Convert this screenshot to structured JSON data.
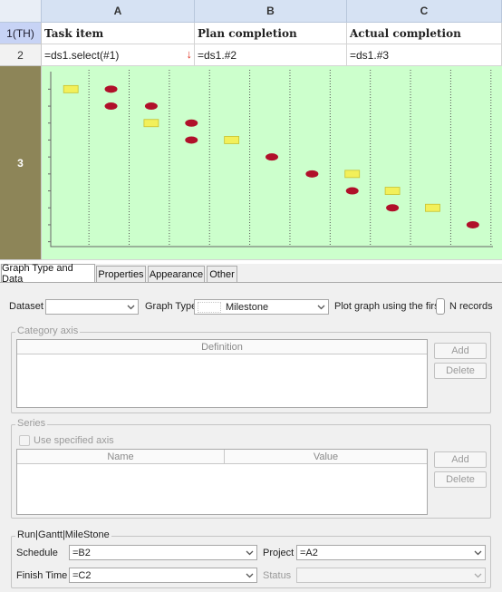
{
  "sheet": {
    "columns": [
      "A",
      "B",
      "C"
    ],
    "rows": [
      {
        "header": "1(TH)",
        "cells": [
          "Task item",
          "Plan completion",
          "Actual completion"
        ]
      },
      {
        "header": "2",
        "cells": [
          "=ds1.select(#1)",
          "=ds1.#2",
          "=ds1.#3"
        ]
      },
      {
        "header": "3"
      }
    ]
  },
  "chart_data": {
    "type": "scatter",
    "title": "",
    "xlabel": "",
    "ylabel": "",
    "grid": true,
    "background": "#ccffcc",
    "series": [
      {
        "marker": "rectangle",
        "color": "#f2f05a",
        "points": [
          [
            0,
            1
          ],
          [
            2,
            3
          ],
          [
            4,
            4
          ],
          [
            7,
            6
          ],
          [
            8,
            7
          ],
          [
            9,
            8
          ]
        ]
      },
      {
        "marker": "ellipse",
        "color": "#b0102a",
        "points": [
          [
            1,
            1
          ],
          [
            1,
            2
          ],
          [
            2,
            2
          ],
          [
            3,
            3
          ],
          [
            3,
            4
          ],
          [
            5,
            5
          ],
          [
            6,
            6
          ],
          [
            7,
            7
          ],
          [
            8,
            8
          ],
          [
            10,
            9
          ]
        ]
      }
    ]
  },
  "tabs": [
    {
      "label": "Graph Type and Data",
      "active": true
    },
    {
      "label": "Properties"
    },
    {
      "label": "Appearance"
    },
    {
      "label": "Other"
    }
  ],
  "panel": {
    "dataset_label": "Dataset",
    "dataset_value": "",
    "graph_type_label": "Graph Type",
    "graph_type_value": "Milestone",
    "plot_first_label": "Plot graph using the first",
    "n_records_label": "N records",
    "category_axis": {
      "legend": "Category axis",
      "definition_header": "Definition",
      "add_label": "Add",
      "delete_label": "Delete"
    },
    "series": {
      "legend": "Series",
      "use_specified_axis_label": "Use specified axis",
      "name_header": "Name",
      "value_header": "Value",
      "add_label": "Add",
      "delete_label": "Delete"
    },
    "run_gantt": {
      "legend": "Run|Gantt|MileStone",
      "schedule_label": "Schedule",
      "schedule_value": "=B2",
      "project_label": "Project",
      "project_value": "=A2",
      "finish_time_label": "Finish Time",
      "finish_time_value": "=C2",
      "status_label": "Status",
      "status_value": ""
    }
  }
}
